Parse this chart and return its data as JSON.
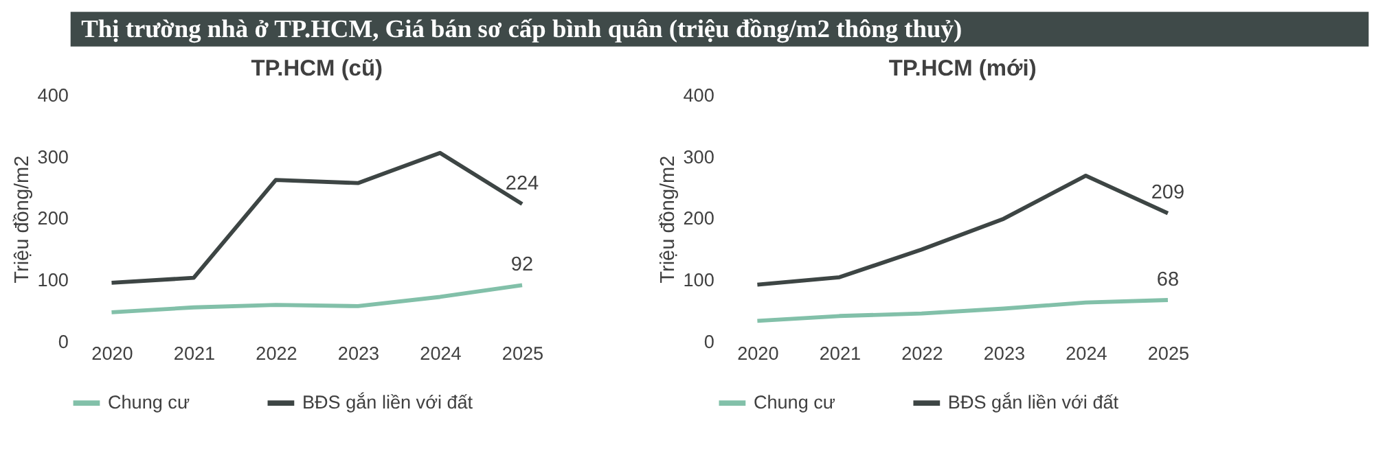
{
  "chart_data": [
    {
      "type": "other",
      "title": "Thị trường nhà ở TP.HCM, Giá bán sơ cấp bình quân (triệu đồng/m2 thông thuỷ)"
    },
    {
      "type": "line",
      "title": "TP.HCM (cũ)",
      "ylabel": "Triệu đồng/m2",
      "categories": [
        "2020",
        "2021",
        "2022",
        "2023",
        "2024",
        "2025"
      ],
      "ylim": [
        0,
        400
      ],
      "yticks": [
        0,
        100,
        200,
        300,
        400
      ],
      "grid": false,
      "legend": "bottom",
      "marker": "none",
      "line_style": "solid",
      "series": [
        {
          "name": "Chung cư",
          "color": "#82c0a9",
          "values": [
            48,
            56,
            60,
            58,
            73,
            92
          ],
          "value_labels": [
            null,
            null,
            null,
            null,
            null,
            "92"
          ]
        },
        {
          "name": "BĐS gắn liền với đất",
          "color": "#3d4544",
          "values": [
            96,
            104,
            263,
            258,
            307,
            224
          ],
          "value_labels": [
            null,
            null,
            null,
            null,
            null,
            "224"
          ]
        }
      ]
    },
    {
      "type": "line",
      "title": "TP.HCM (mới)",
      "ylabel": "Triệu đồng/m2",
      "categories": [
        "2020",
        "2021",
        "2022",
        "2023",
        "2024",
        "2025"
      ],
      "ylim": [
        0,
        400
      ],
      "yticks": [
        0,
        100,
        200,
        300,
        400
      ],
      "grid": false,
      "legend": "bottom",
      "marker": "none",
      "line_style": "solid",
      "series": [
        {
          "name": "Chung cư",
          "color": "#82c0a9",
          "values": [
            34,
            42,
            46,
            54,
            64,
            68
          ],
          "value_labels": [
            null,
            null,
            null,
            null,
            null,
            "68"
          ]
        },
        {
          "name": "BĐS gắn liền với đất",
          "color": "#3d4544",
          "values": [
            93,
            105,
            150,
            200,
            270,
            209
          ],
          "value_labels": [
            null,
            null,
            null,
            null,
            null,
            "209"
          ]
        }
      ]
    }
  ]
}
